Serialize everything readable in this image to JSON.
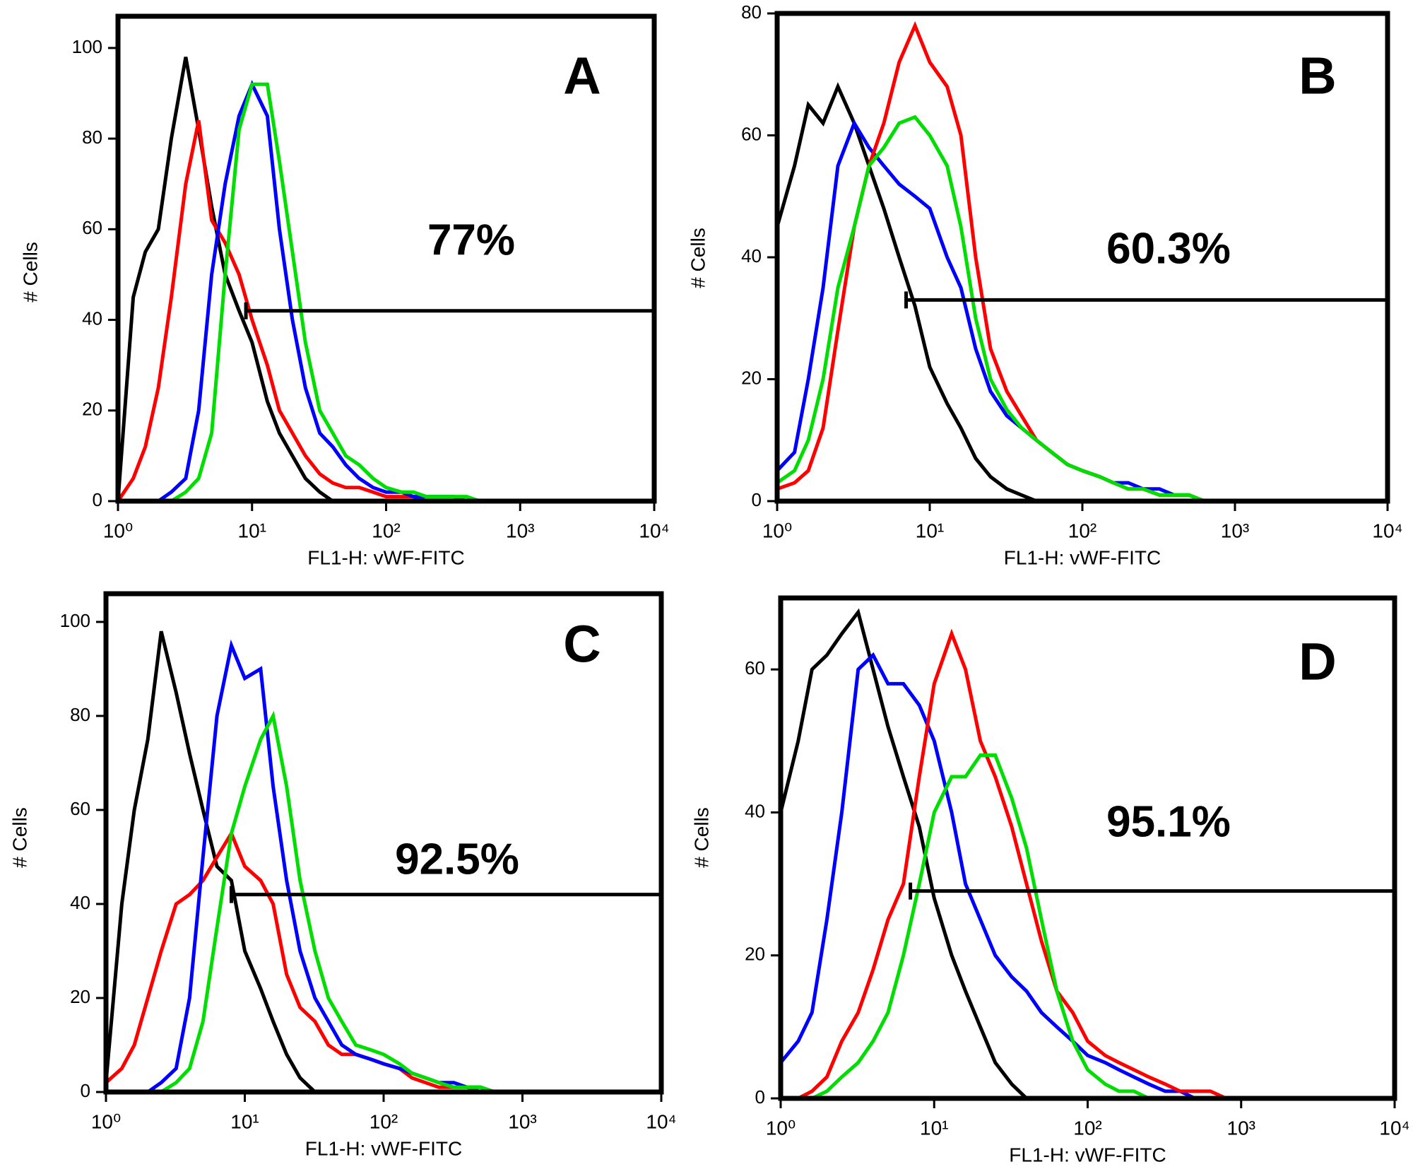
{
  "chart_data": [
    {
      "type": "line",
      "title": "A",
      "annotation": "77%",
      "x_label": "FL1-H: vWF-FITC",
      "y_label": "# Cells",
      "x_scale": "log",
      "xlim": [
        1,
        10000
      ],
      "xticks": [
        {
          "value": 1,
          "label": "10⁰"
        },
        {
          "value": 10,
          "label": "10¹"
        },
        {
          "value": 100,
          "label": "10²"
        },
        {
          "value": 1000,
          "label": "10³"
        },
        {
          "value": 10000,
          "label": "10⁴"
        }
      ],
      "ylim": [
        0,
        107
      ],
      "yticks": [
        0,
        20,
        40,
        60,
        80,
        100
      ],
      "gate": {
        "x": [
          9,
          10000
        ],
        "y": 42
      },
      "x": [
        1,
        1.3,
        1.6,
        2,
        2.5,
        3.2,
        4,
        5,
        6.3,
        8,
        10,
        13,
        16,
        20,
        25,
        32,
        40,
        50,
        63,
        80,
        100,
        130,
        160,
        200,
        250,
        320,
        400,
        500,
        630,
        800,
        1000,
        2000,
        10000
      ],
      "series": [
        {
          "color": "#000000",
          "values": [
            0,
            45,
            55,
            60,
            80,
            98,
            82,
            65,
            50,
            42,
            35,
            22,
            15,
            10,
            5,
            2,
            0,
            0,
            0,
            0,
            0,
            0,
            0,
            0,
            0,
            0,
            0,
            0,
            0,
            0,
            0,
            0,
            0
          ]
        },
        {
          "color": "#ff0000",
          "values": [
            0,
            5,
            12,
            25,
            45,
            70,
            84,
            62,
            57,
            50,
            40,
            30,
            20,
            15,
            10,
            6,
            4,
            3,
            3,
            2,
            1,
            1,
            1,
            0,
            0,
            0,
            0,
            0,
            0,
            0,
            0,
            0,
            0
          ]
        },
        {
          "color": "#0000ff",
          "values": [
            0,
            0,
            0,
            0,
            2,
            5,
            20,
            50,
            70,
            85,
            92,
            85,
            60,
            40,
            25,
            15,
            12,
            8,
            5,
            3,
            2,
            2,
            1,
            1,
            1,
            1,
            0,
            0,
            0,
            0,
            0,
            0,
            0
          ]
        },
        {
          "color": "#00dd00",
          "values": [
            0,
            0,
            0,
            0,
            0,
            2,
            5,
            15,
            50,
            82,
            92,
            92,
            75,
            55,
            35,
            20,
            15,
            10,
            8,
            5,
            3,
            2,
            2,
            1,
            1,
            1,
            1,
            0,
            0,
            0,
            0,
            0,
            0
          ]
        }
      ]
    },
    {
      "type": "line",
      "title": "B",
      "annotation": "60.3%",
      "x_label": "FL1-H: vWF-FITC",
      "y_label": "# Cells",
      "x_scale": "log",
      "xlim": [
        1,
        10000
      ],
      "xticks": [
        {
          "value": 1,
          "label": "10⁰"
        },
        {
          "value": 10,
          "label": "10¹"
        },
        {
          "value": 100,
          "label": "10²"
        },
        {
          "value": 1000,
          "label": "10³"
        },
        {
          "value": 10000,
          "label": "10⁴"
        }
      ],
      "ylim": [
        0,
        80
      ],
      "yticks": [
        0,
        20,
        40,
        60,
        80
      ],
      "gate": {
        "x": [
          7,
          10000
        ],
        "y": 33
      },
      "x": [
        1,
        1.3,
        1.6,
        2,
        2.5,
        3.2,
        4,
        5,
        6.3,
        8,
        10,
        13,
        16,
        20,
        25,
        32,
        40,
        50,
        63,
        80,
        100,
        130,
        160,
        200,
        250,
        320,
        400,
        500,
        630,
        800,
        1000,
        2000,
        10000
      ],
      "series": [
        {
          "color": "#000000",
          "values": [
            45,
            55,
            65,
            62,
            68,
            62,
            55,
            48,
            40,
            32,
            22,
            16,
            12,
            7,
            4,
            2,
            1,
            0,
            0,
            0,
            0,
            0,
            0,
            0,
            0,
            0,
            0,
            0,
            0,
            0,
            0,
            0,
            0
          ]
        },
        {
          "color": "#0000ff",
          "values": [
            5,
            8,
            20,
            35,
            55,
            62,
            58,
            55,
            52,
            50,
            48,
            40,
            35,
            25,
            18,
            14,
            12,
            10,
            8,
            6,
            5,
            4,
            3,
            3,
            2,
            2,
            1,
            1,
            0,
            0,
            0,
            0,
            0
          ]
        },
        {
          "color": "#ff0000",
          "values": [
            2,
            3,
            5,
            12,
            28,
            45,
            55,
            62,
            72,
            78,
            72,
            68,
            60,
            40,
            25,
            18,
            14,
            10,
            8,
            6,
            5,
            4,
            3,
            2,
            2,
            1,
            1,
            1,
            0,
            0,
            0,
            0,
            0
          ]
        },
        {
          "color": "#00dd00",
          "values": [
            3,
            5,
            10,
            20,
            35,
            45,
            55,
            58,
            62,
            63,
            60,
            55,
            45,
            30,
            20,
            15,
            12,
            10,
            8,
            6,
            5,
            4,
            3,
            2,
            2,
            1,
            1,
            1,
            0,
            0,
            0,
            0,
            0
          ]
        }
      ]
    },
    {
      "type": "line",
      "title": "C",
      "annotation": "92.5%",
      "x_label": "FL1-H: vWF-FITC",
      "y_label": "# Cells",
      "x_scale": "log",
      "xlim": [
        1,
        10000
      ],
      "xticks": [
        {
          "value": 1,
          "label": "10⁰"
        },
        {
          "value": 10,
          "label": "10¹"
        },
        {
          "value": 100,
          "label": "10²"
        },
        {
          "value": 1000,
          "label": "10³"
        },
        {
          "value": 10000,
          "label": "10⁴"
        }
      ],
      "ylim": [
        0,
        106
      ],
      "yticks": [
        0,
        20,
        40,
        60,
        80,
        100
      ],
      "gate": {
        "x": [
          8,
          10000
        ],
        "y": 42
      },
      "x": [
        1,
        1.3,
        1.6,
        2,
        2.5,
        3.2,
        4,
        5,
        6.3,
        8,
        10,
        13,
        16,
        20,
        25,
        32,
        40,
        50,
        63,
        80,
        100,
        130,
        160,
        200,
        250,
        320,
        400,
        500,
        630,
        800,
        1000,
        2000,
        10000
      ],
      "series": [
        {
          "color": "#000000",
          "values": [
            2,
            40,
            60,
            75,
            98,
            85,
            72,
            60,
            48,
            45,
            30,
            22,
            15,
            8,
            3,
            0,
            0,
            0,
            0,
            0,
            0,
            0,
            0,
            0,
            0,
            0,
            0,
            0,
            0,
            0,
            0,
            0,
            0
          ]
        },
        {
          "color": "#ff0000",
          "values": [
            2,
            5,
            10,
            20,
            30,
            40,
            42,
            45,
            50,
            55,
            48,
            45,
            40,
            25,
            18,
            15,
            10,
            8,
            8,
            7,
            6,
            5,
            3,
            2,
            1,
            1,
            1,
            0,
            0,
            0,
            0,
            0,
            0
          ]
        },
        {
          "color": "#0000ff",
          "values": [
            0,
            0,
            0,
            0,
            2,
            5,
            20,
            50,
            80,
            95,
            88,
            90,
            65,
            45,
            30,
            20,
            15,
            10,
            8,
            7,
            6,
            5,
            4,
            3,
            2,
            2,
            1,
            1,
            0,
            0,
            0,
            0,
            0
          ]
        },
        {
          "color": "#00dd00",
          "values": [
            0,
            0,
            0,
            0,
            0,
            2,
            5,
            15,
            35,
            55,
            65,
            75,
            80,
            65,
            45,
            30,
            20,
            15,
            10,
            9,
            8,
            6,
            4,
            3,
            2,
            1,
            1,
            1,
            0,
            0,
            0,
            0,
            0
          ]
        }
      ]
    },
    {
      "type": "line",
      "title": "D",
      "annotation": "95.1%",
      "x_label": "FL1-H: vWF-FITC",
      "y_label": "# Cells",
      "x_scale": "log",
      "xlim": [
        1,
        10000
      ],
      "xticks": [
        {
          "value": 1,
          "label": "10⁰"
        },
        {
          "value": 10,
          "label": "10¹"
        },
        {
          "value": 100,
          "label": "10²"
        },
        {
          "value": 1000,
          "label": "10³"
        },
        {
          "value": 10000,
          "label": "10⁴"
        }
      ],
      "ylim": [
        0,
        70
      ],
      "yticks": [
        0,
        20,
        40,
        60
      ],
      "gate": {
        "x": [
          7,
          10000
        ],
        "y": 29
      },
      "x": [
        1,
        1.3,
        1.6,
        2,
        2.5,
        3.2,
        4,
        5,
        6.3,
        8,
        10,
        13,
        16,
        20,
        25,
        32,
        40,
        50,
        63,
        80,
        100,
        130,
        160,
        200,
        250,
        320,
        400,
        500,
        630,
        800,
        1000,
        2000,
        10000
      ],
      "series": [
        {
          "color": "#000000",
          "values": [
            40,
            50,
            60,
            62,
            65,
            68,
            60,
            52,
            45,
            38,
            28,
            20,
            15,
            10,
            5,
            2,
            0,
            0,
            0,
            0,
            0,
            0,
            0,
            0,
            0,
            0,
            0,
            0,
            0,
            0,
            0,
            0,
            0
          ]
        },
        {
          "color": "#0000ff",
          "values": [
            5,
            8,
            12,
            25,
            40,
            60,
            62,
            58,
            58,
            55,
            50,
            40,
            30,
            25,
            20,
            17,
            15,
            12,
            10,
            8,
            6,
            5,
            4,
            3,
            2,
            1,
            1,
            0,
            0,
            0,
            0,
            0,
            0
          ]
        },
        {
          "color": "#ff0000",
          "values": [
            0,
            0,
            1,
            3,
            8,
            12,
            18,
            25,
            30,
            45,
            58,
            65,
            60,
            50,
            45,
            38,
            30,
            22,
            15,
            12,
            8,
            6,
            5,
            4,
            3,
            2,
            1,
            1,
            1,
            0,
            0,
            0,
            0
          ]
        },
        {
          "color": "#00dd00",
          "values": [
            0,
            0,
            0,
            1,
            3,
            5,
            8,
            12,
            20,
            30,
            40,
            45,
            45,
            48,
            48,
            42,
            35,
            25,
            15,
            8,
            4,
            2,
            1,
            1,
            0,
            0,
            0,
            0,
            0,
            0,
            0,
            0,
            0
          ]
        }
      ]
    }
  ]
}
